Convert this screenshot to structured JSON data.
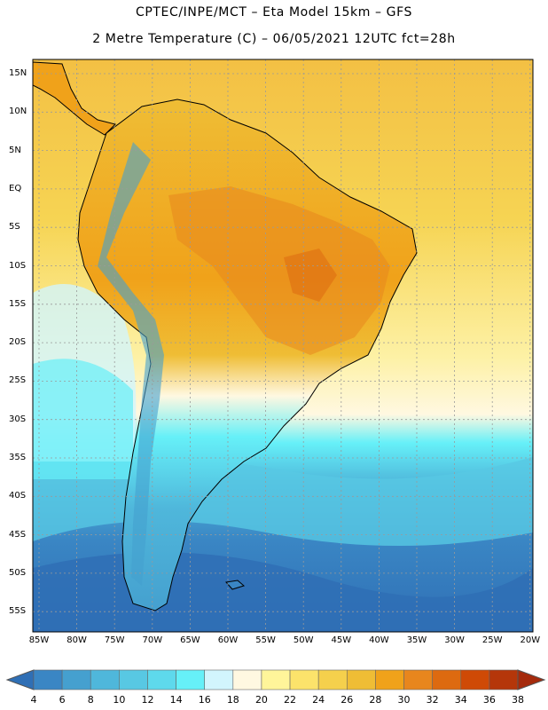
{
  "header": {
    "line1": "CPTEC/INPE/MCT –  Eta Model 15km – GFS",
    "line2": "2 Metre Temperature (C) – 06/05/2021 12UTC fct=28h"
  },
  "axes": {
    "lat_labels": [
      "15N",
      "10N",
      "5N",
      "EQ",
      "5S",
      "10S",
      "15S",
      "20S",
      "25S",
      "30S",
      "35S",
      "40S",
      "45S",
      "50S",
      "55S"
    ],
    "lon_labels": [
      "85W",
      "80W",
      "75W",
      "70W",
      "65W",
      "60W",
      "55W",
      "50W",
      "45W",
      "40W",
      "35W",
      "30W",
      "25W",
      "20W"
    ]
  },
  "colorbar": {
    "labels": [
      "4",
      "6",
      "8",
      "10",
      "12",
      "14",
      "16",
      "18",
      "20",
      "22",
      "24",
      "26",
      "28",
      "30",
      "32",
      "34",
      "36",
      "38"
    ],
    "colors": [
      "#2f6fb5",
      "#3a86c4",
      "#45a0cf",
      "#4fb7db",
      "#58c8e3",
      "#5ed9ec",
      "#66f0f8",
      "#d2f5fd",
      "#fff8e1",
      "#fff59a",
      "#fce36b",
      "#f5d04c",
      "#efbd35",
      "#f0a21a",
      "#e8861d",
      "#dd6a10",
      "#cf4a06",
      "#b5360a",
      "#a52a0c"
    ]
  },
  "map": {
    "land_regions": [
      "North America (partial)",
      "South America",
      "Falkland Islands"
    ],
    "ocean_color": "#f5d35a",
    "cold_ocean_color": "#3a86c4"
  }
}
